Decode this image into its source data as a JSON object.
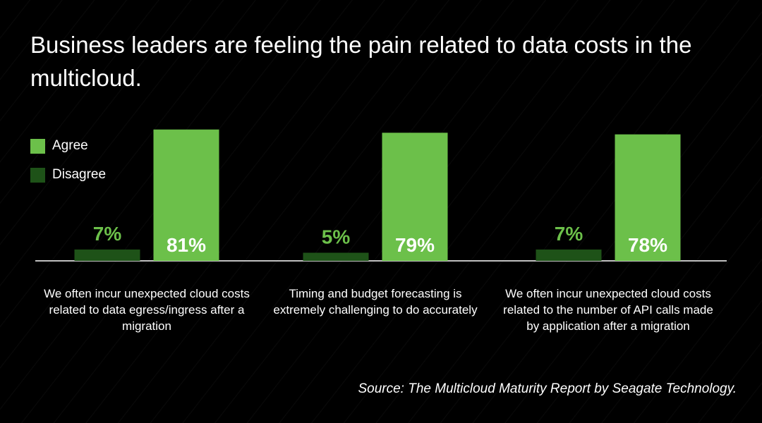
{
  "title": "Business leaders are feeling the pain related to data costs in the multicloud.",
  "legend": {
    "position": "left",
    "items": [
      {
        "label": "Agree",
        "color": "#6cc04a"
      },
      {
        "label": "Disagree",
        "color": "#1e5218"
      }
    ]
  },
  "source": "Source: The Multicloud Maturity Report by Seagate Technology.",
  "chart_data": {
    "type": "bar",
    "categories": [
      "We often incur unexpected cloud costs related to data egress/ingress after a migration",
      "Timing and budget forecasting is extremely challenging to do accurately",
      "We often incur unexpected cloud costs related to the number of API calls made by application after a migration"
    ],
    "series": [
      {
        "name": "Disagree",
        "values": [
          7,
          5,
          7
        ],
        "labels": [
          "7%",
          "5%",
          "7%"
        ],
        "color": "#1e5218",
        "label_color": "#6cc04a"
      },
      {
        "name": "Agree",
        "values": [
          81,
          79,
          78
        ],
        "labels": [
          "81%",
          "79%",
          "78%"
        ],
        "color": "#6cc04a",
        "label_color": "#ffffff"
      }
    ],
    "ylim": [
      0,
      100
    ],
    "grid": false,
    "title": "Business leaders are feeling the pain related to data costs in the multicloud.",
    "xlabel": "",
    "ylabel": ""
  }
}
